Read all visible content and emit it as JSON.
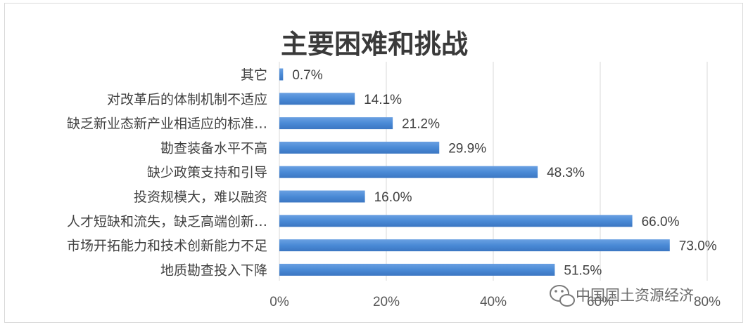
{
  "chart_data": {
    "type": "bar",
    "orientation": "horizontal",
    "title": "主要困难和挑战",
    "categories": [
      "其它",
      "对改革后的体制机制不适应",
      "缺乏新业态新产业相适应的标准…",
      "勘查装备水平不高",
      "缺少政策支持和引导",
      "投资规模大，难以融资",
      "人才短缺和流失，缺乏高端创新…",
      "市场开拓能力和技术创新能力不足",
      "地质勘查投入下降"
    ],
    "values": [
      0.7,
      14.1,
      21.2,
      29.9,
      48.3,
      16.0,
      66.0,
      73.0,
      51.5
    ],
    "value_labels": [
      "0.7%",
      "14.1%",
      "21.2%",
      "29.9%",
      "48.3%",
      "16.0%",
      "66.0%",
      "73.0%",
      "51.5%"
    ],
    "xlim": [
      0,
      80
    ],
    "x_ticks": [
      0,
      20,
      40,
      60,
      80
    ],
    "x_tick_labels": [
      "0%",
      "20%",
      "40%",
      "60%",
      "80%"
    ],
    "grid": true,
    "bar_color": "#4a8ad6"
  },
  "watermark": {
    "icon": "wechat-icon",
    "text": "中国国土资源经济"
  }
}
